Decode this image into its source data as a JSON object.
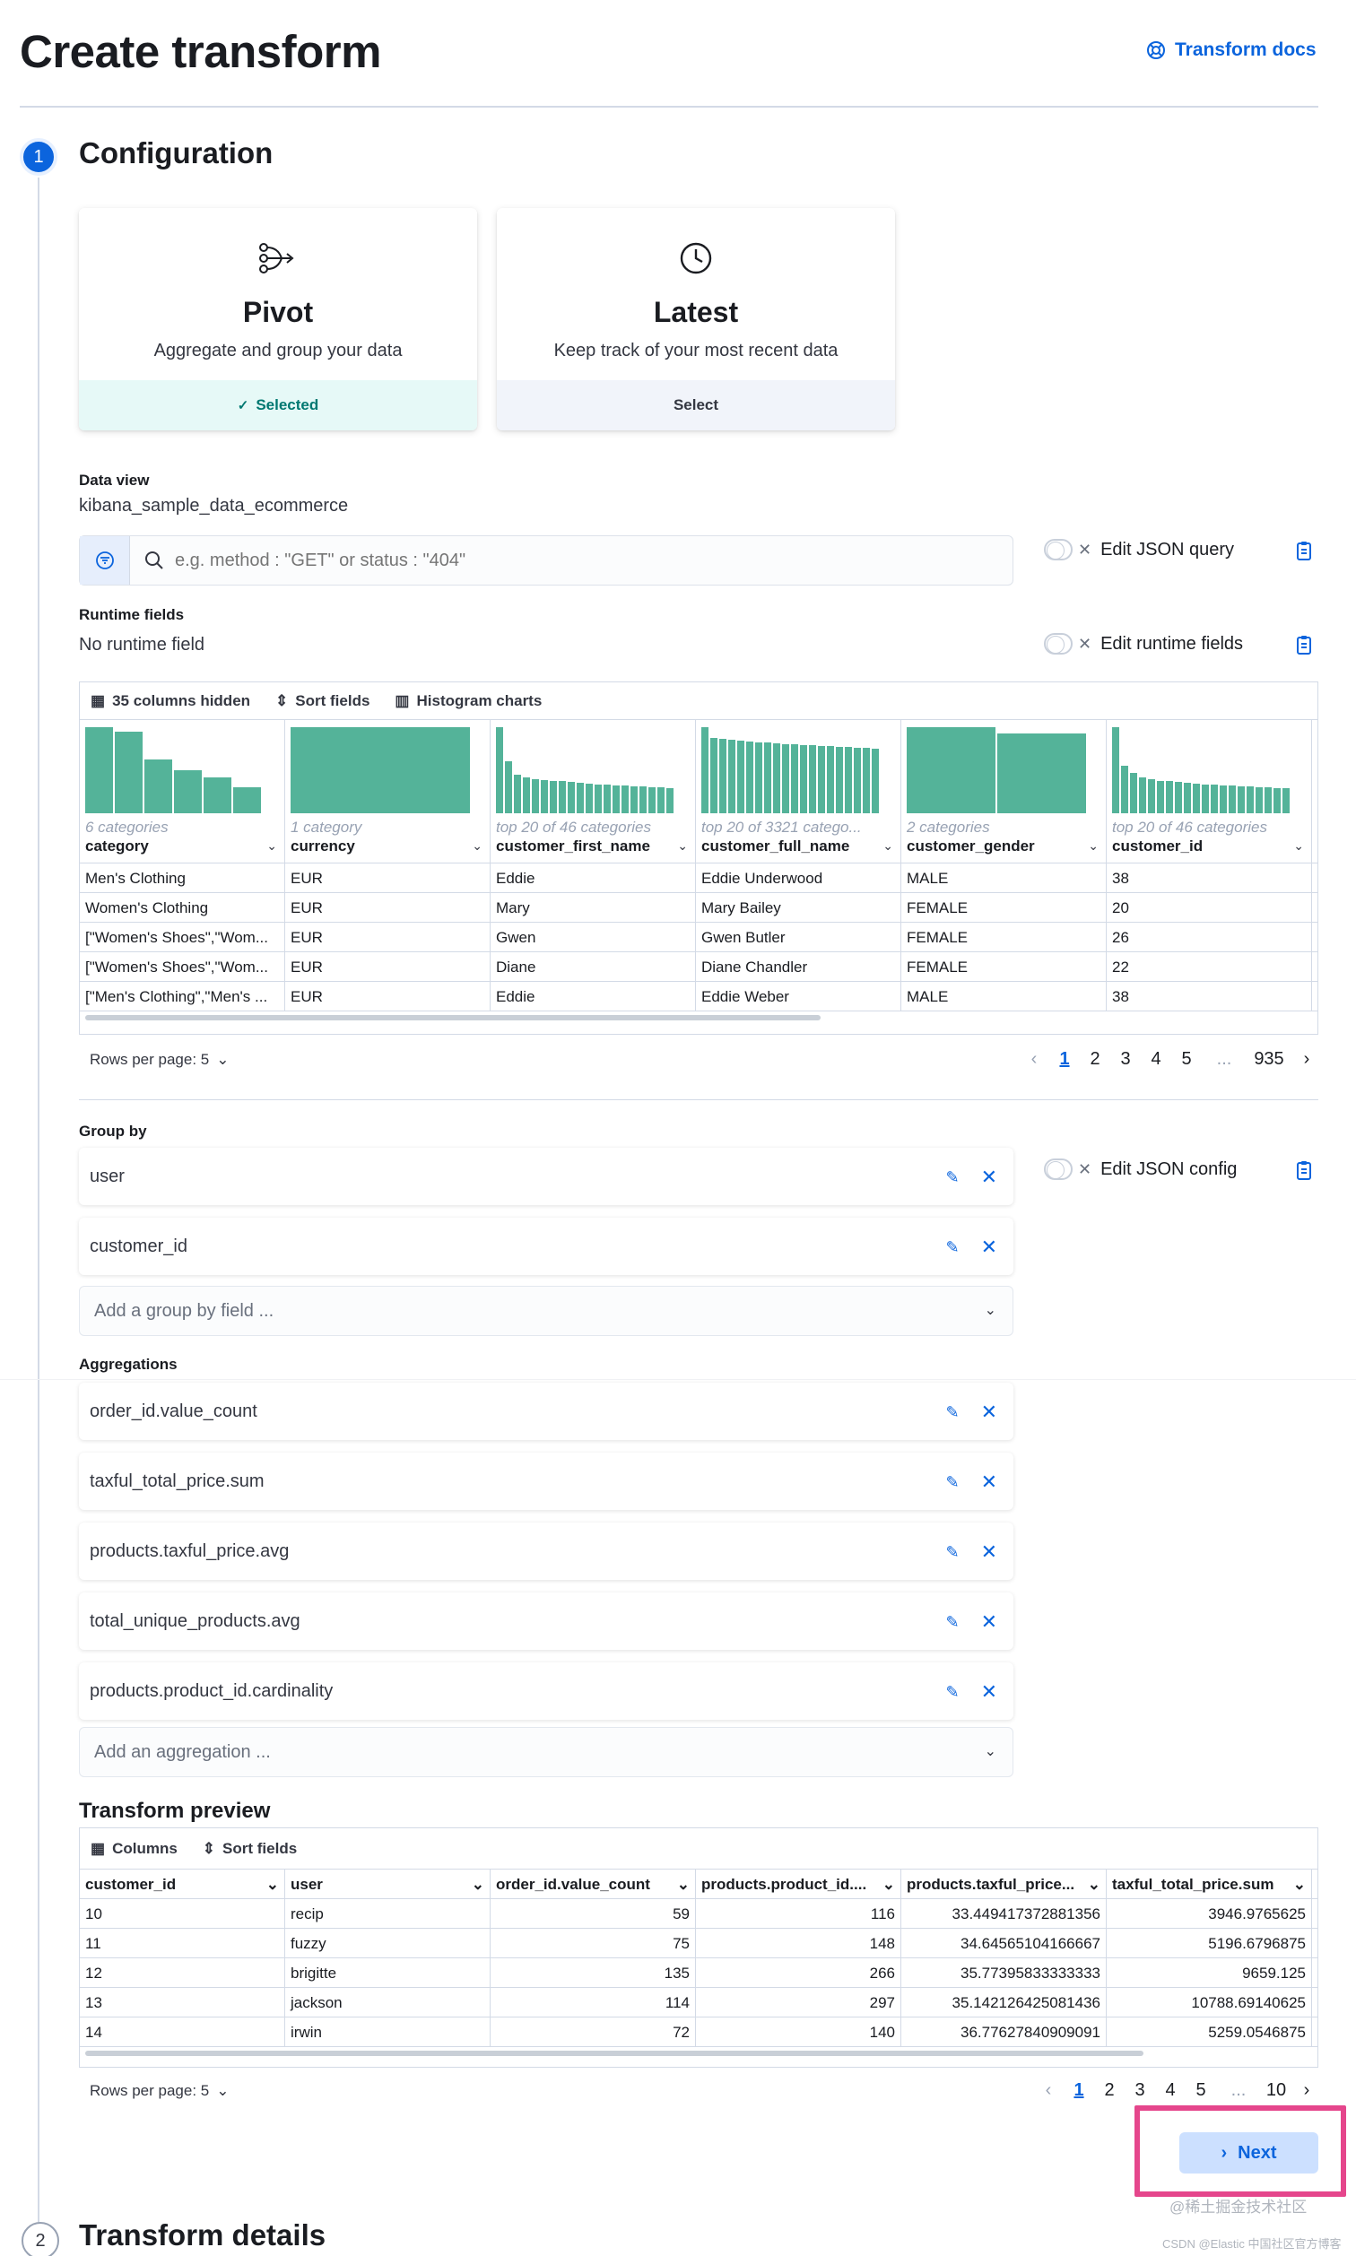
{
  "header": {
    "title": "Create transform",
    "docs_link": "Transform docs"
  },
  "step1": {
    "number": "1",
    "title": "Configuration"
  },
  "step2": {
    "number": "2",
    "title": "Transform details"
  },
  "cards": [
    {
      "title": "Pivot",
      "desc": "Aggregate and group your data",
      "action": "Selected",
      "icon": "pivot-icon",
      "selected": true
    },
    {
      "title": "Latest",
      "desc": "Keep track of your most recent data",
      "action": "Select",
      "icon": "clock-icon",
      "selected": false
    }
  ],
  "data_view": {
    "label": "Data view",
    "value": "kibana_sample_data_ecommerce"
  },
  "query": {
    "placeholder": "e.g. method : \"GET\" or status : \"404\"",
    "edit_json_query": "Edit JSON query"
  },
  "runtime": {
    "label": "Runtime fields",
    "value": "No runtime field",
    "edit_runtime": "Edit runtime fields"
  },
  "source_grid": {
    "toolbar": {
      "columns_hidden": "35 columns hidden",
      "sort": "Sort fields",
      "histogram": "Histogram charts"
    },
    "columns": [
      {
        "name": "category",
        "sub": "6 categories",
        "bars": [
          1,
          0.95,
          0.63,
          0.5,
          0.42,
          0.3
        ]
      },
      {
        "name": "currency",
        "sub": "1 category",
        "bars": [
          1
        ]
      },
      {
        "name": "customer_first_name",
        "sub": "top 20 of 46 categories",
        "bars": [
          1,
          0.6,
          0.45,
          0.42,
          0.4,
          0.39,
          0.38,
          0.37,
          0.36,
          0.35,
          0.34,
          0.33,
          0.33,
          0.32,
          0.32,
          0.31,
          0.31,
          0.3,
          0.3,
          0.29
        ]
      },
      {
        "name": "customer_full_name",
        "sub": "top 20 of 3321 catego...",
        "bars": [
          1,
          0.88,
          0.86,
          0.85,
          0.84,
          0.83,
          0.82,
          0.82,
          0.81,
          0.8,
          0.8,
          0.79,
          0.79,
          0.78,
          0.78,
          0.77,
          0.77,
          0.76,
          0.76,
          0.75
        ]
      },
      {
        "name": "customer_gender",
        "sub": "2 categories",
        "bars": [
          1,
          0.93
        ]
      },
      {
        "name": "customer_id",
        "sub": "top 20 of 46 categories",
        "bars": [
          1,
          0.55,
          0.47,
          0.42,
          0.4,
          0.38,
          0.37,
          0.36,
          0.35,
          0.34,
          0.33,
          0.33,
          0.32,
          0.32,
          0.31,
          0.31,
          0.3,
          0.3,
          0.29,
          0.29
        ]
      }
    ],
    "rows": [
      [
        "Men's Clothing",
        "EUR",
        "Eddie",
        "Eddie Underwood",
        "MALE",
        "38"
      ],
      [
        "Women's Clothing",
        "EUR",
        "Mary",
        "Mary Bailey",
        "FEMALE",
        "20"
      ],
      [
        "[\"Women's Shoes\",\"Wom...",
        "EUR",
        "Gwen",
        "Gwen Butler",
        "FEMALE",
        "26"
      ],
      [
        "[\"Women's Shoes\",\"Wom...",
        "EUR",
        "Diane",
        "Diane Chandler",
        "FEMALE",
        "22"
      ],
      [
        "[\"Men's Clothing\",\"Men's ...",
        "EUR",
        "Eddie",
        "Eddie Weber",
        "MALE",
        "38"
      ]
    ],
    "rows_per_page": "Rows per page: 5",
    "pages": [
      "1",
      "2",
      "3",
      "4",
      "5",
      "...",
      "935"
    ]
  },
  "group_by": {
    "label": "Group by",
    "items": [
      "user",
      "customer_id"
    ],
    "add_placeholder": "Add a group by field ...",
    "edit_json_config": "Edit JSON config"
  },
  "aggregations": {
    "label": "Aggregations",
    "items": [
      "order_id.value_count",
      "taxful_total_price.sum",
      "products.taxful_price.avg",
      "total_unique_products.avg",
      "products.product_id.cardinality"
    ],
    "add_placeholder": "Add an aggregation ..."
  },
  "preview": {
    "title": "Transform preview",
    "toolbar": {
      "columns": "Columns",
      "sort": "Sort fields"
    },
    "columns": [
      "customer_id",
      "user",
      "order_id.value_count",
      "products.product_id....",
      "products.taxful_price...",
      "taxful_total_price.sum"
    ],
    "rows": [
      [
        "10",
        "recip",
        "59",
        "116",
        "33.449417372881356",
        "3946.9765625"
      ],
      [
        "11",
        "fuzzy",
        "75",
        "148",
        "34.64565104166667",
        "5196.6796875"
      ],
      [
        "12",
        "brigitte",
        "135",
        "266",
        "35.77395833333333",
        "9659.125"
      ],
      [
        "13",
        "jackson",
        "114",
        "297",
        "35.142126425081436",
        "10788.69140625"
      ],
      [
        "14",
        "irwin",
        "72",
        "140",
        "36.77627840909091",
        "5259.0546875"
      ]
    ],
    "rows_per_page": "Rows per page: 5",
    "pages": [
      "1",
      "2",
      "3",
      "4",
      "5",
      "...",
      "10"
    ]
  },
  "next_button": "Next",
  "watermark1": "@稀土掘金技术社区",
  "watermark2": "CSDN @Elastic 中国社区官方博客",
  "colors": {
    "accent": "#0b64dd",
    "histogram": "#54b399",
    "highlight": "#e5468c"
  }
}
